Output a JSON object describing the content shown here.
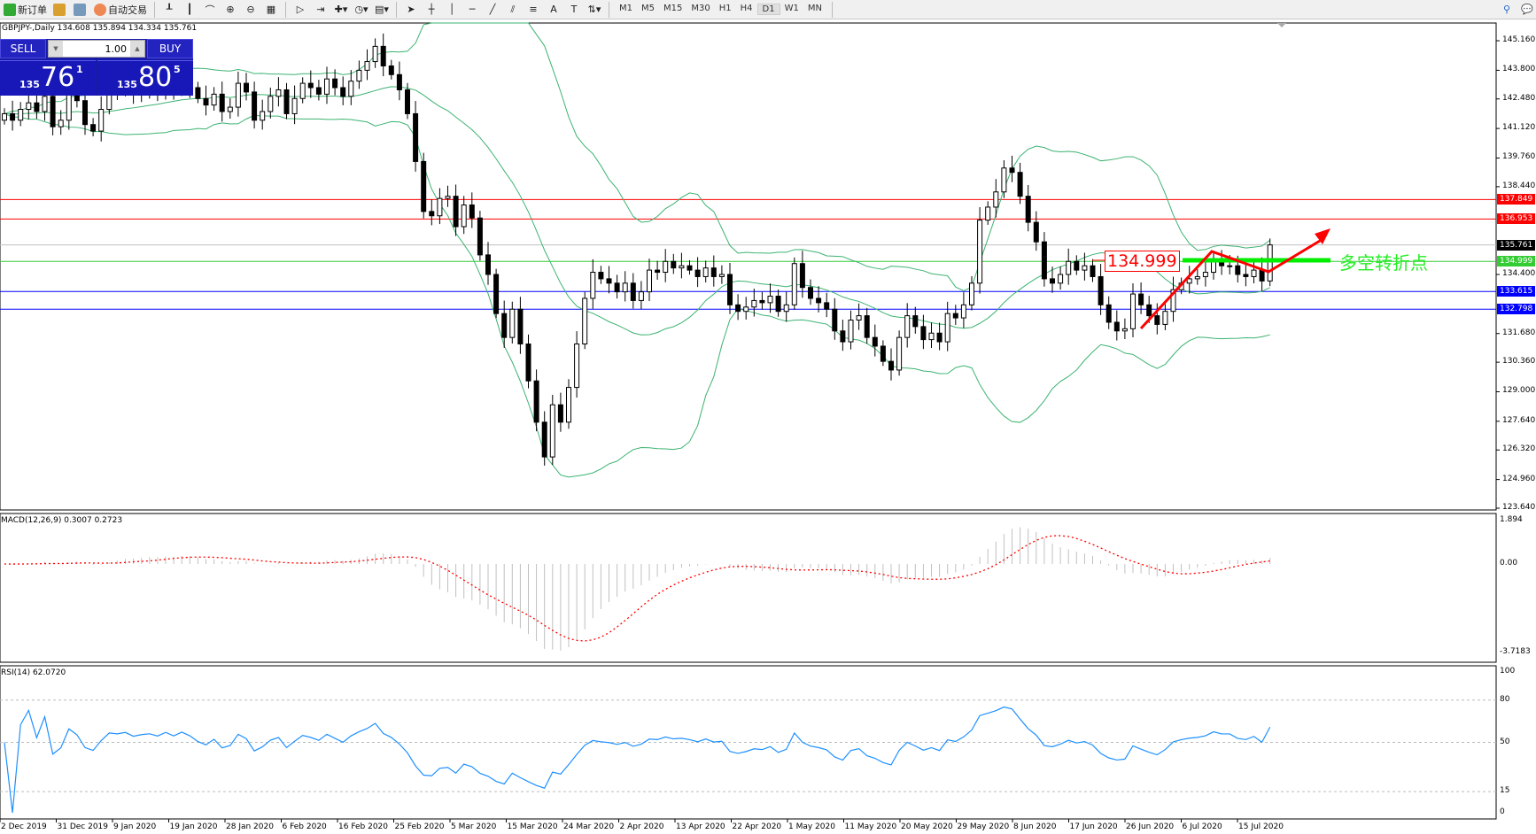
{
  "toolbar": {
    "new_order": "新订单",
    "auto_trading": "自动交易",
    "timeframes": [
      "M1",
      "M5",
      "M15",
      "M30",
      "H1",
      "H4",
      "D1",
      "W1",
      "MN"
    ],
    "active_timeframe": "D1"
  },
  "chart": {
    "title": "GBPJPY-,Daily  134.608 135.894 134.334 135.761"
  },
  "order_panel": {
    "sell_label": "SELL",
    "buy_label": "BUY",
    "lot": "1.00",
    "sell_big": "135",
    "sell_main": "76",
    "sell_sup": "1",
    "buy_big": "135",
    "buy_main": "80",
    "buy_sup": "5",
    "color": "#1a1aa8"
  },
  "price_axis": [
    "145.160",
    "143.800",
    "142.480",
    "141.120",
    "139.760",
    "138.440",
    "134.400",
    "131.680",
    "130.360",
    "129.000",
    "127.640",
    "126.320",
    "124.960",
    "123.640"
  ],
  "levels": [
    {
      "price": "137.849",
      "color": "#ff0000"
    },
    {
      "price": "136.953",
      "color": "#ff0000"
    },
    {
      "price": "135.761",
      "color": "#000000",
      "line": "#c0c0c0"
    },
    {
      "price": "134.999",
      "color": "#33cc33"
    },
    {
      "price": "133.615",
      "color": "#0000ff"
    },
    {
      "price": "132.798",
      "color": "#0000ff"
    }
  ],
  "annotations": {
    "price_label": "134.999",
    "text": "多空转折点",
    "arrow_color": "#ff0000",
    "line_color": "#00ee00"
  },
  "macd": {
    "title": "MACD(12,26,9) 0.3007 0.2723",
    "axis": [
      "1.894",
      "0.00",
      "-3.7183"
    ]
  },
  "rsi": {
    "title": "RSI(14) 62.0720",
    "axis": [
      "100",
      "80",
      "50",
      "15",
      "0"
    ],
    "color": "#1e90ff"
  },
  "dates": [
    "2 Dec 2019",
    "31 Dec 2019",
    "9 Jan 2020",
    "19 Jan 2020",
    "28 Jan 2020",
    "6 Feb 2020",
    "16 Feb 2020",
    "25 Feb 2020",
    "5 Mar 2020",
    "15 Mar 2020",
    "24 Mar 2020",
    "2 Apr 2020",
    "13 Apr 2020",
    "22 Apr 2020",
    "1 May 2020",
    "11 May 2020",
    "20 May 2020",
    "29 May 2020",
    "8 Jun 2020",
    "17 Jun 2020",
    "26 Jun 2020",
    "6 Jul 2020",
    "15 Jul 2020"
  ],
  "chart_data": {
    "type": "line",
    "symbol": "GBPJPY",
    "timeframe": "Daily",
    "ylim": [
      123.64,
      145.16
    ],
    "closes": [
      141.8,
      141.5,
      142.0,
      142.3,
      141.9,
      142.6,
      141.2,
      141.5,
      142.8,
      142.4,
      141.3,
      141.0,
      142.0,
      143.0,
      142.9,
      143.1,
      142.7,
      142.9,
      143.0,
      142.8,
      143.2,
      142.9,
      143.3,
      143.0,
      142.5,
      142.2,
      142.7,
      141.9,
      142.1,
      143.2,
      142.8,
      141.5,
      141.9,
      142.6,
      142.9,
      141.8,
      142.5,
      143.2,
      143.0,
      142.7,
      143.4,
      143.0,
      142.6,
      143.3,
      143.8,
      144.2,
      144.9,
      144.0,
      143.6,
      142.9,
      141.8,
      139.6,
      137.3,
      137.1,
      137.9,
      138.0,
      136.6,
      137.6,
      137.0,
      135.3,
      134.4,
      132.6,
      131.5,
      132.8,
      131.2,
      129.5,
      127.6,
      126.0,
      128.4,
      127.6,
      129.2,
      131.2,
      133.3,
      134.5,
      134.2,
      134.0,
      133.6,
      134.0,
      133.2,
      133.6,
      134.6,
      134.5,
      135.0,
      134.7,
      134.8,
      134.6,
      134.3,
      134.7,
      134.3,
      134.4,
      133.0,
      132.7,
      132.9,
      133.2,
      133.1,
      133.4,
      132.7,
      133.0,
      134.9,
      133.8,
      133.3,
      133.1,
      132.8,
      131.8,
      131.3,
      132.3,
      132.5,
      131.5,
      131.1,
      130.4,
      130.0,
      131.5,
      132.5,
      132.0,
      131.4,
      131.7,
      131.3,
      132.6,
      132.4,
      133.0,
      134.0,
      136.9,
      137.5,
      138.2,
      139.3,
      139.1,
      138.0,
      136.8,
      135.9,
      134.2,
      134.0,
      134.4,
      135.0,
      134.6,
      134.8,
      134.3,
      133.0,
      132.2,
      131.8,
      131.9,
      133.5,
      133.0,
      132.5,
      132.1,
      132.7,
      133.7,
      134.0,
      134.2,
      134.3,
      134.5,
      135.0,
      134.8,
      134.8,
      134.4,
      134.3,
      134.6,
      134.1,
      135.761
    ],
    "colors": {
      "bands": "#3cb371",
      "macd_signal": "#ff0000",
      "macd_hist": "#c0c0c0",
      "rsi": "#1e90ff"
    }
  }
}
